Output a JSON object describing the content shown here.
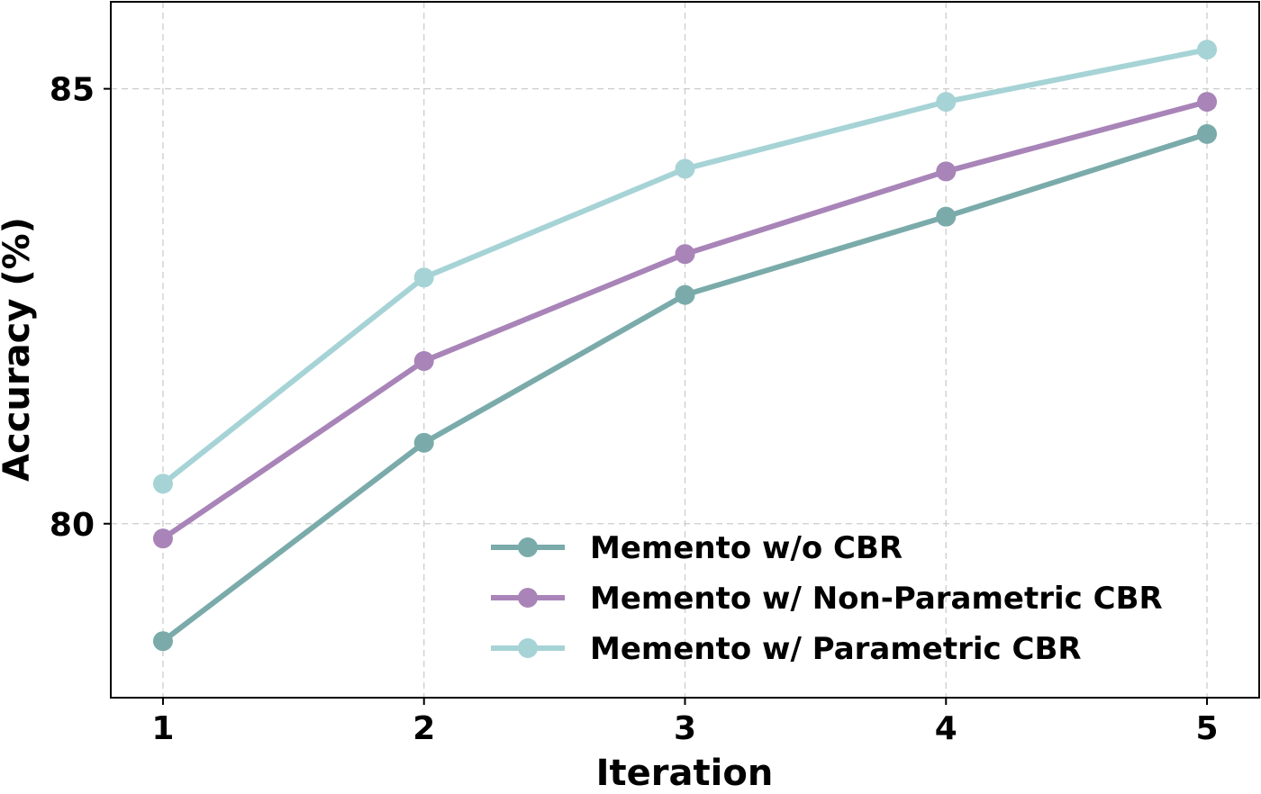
{
  "chart_data": {
    "type": "line",
    "xlabel": "Iteration",
    "ylabel": "Accuracy (%)",
    "x": [
      1,
      2,
      3,
      4,
      5
    ],
    "x_tick_labels": [
      "1",
      "2",
      "3",
      "4",
      "5"
    ],
    "y_ticks": [
      80,
      85
    ],
    "y_tick_labels": [
      "80",
      "85"
    ],
    "xlim": [
      0.8,
      5.2
    ],
    "ylim": [
      78,
      86
    ],
    "grid": true,
    "legend_position": "lower right",
    "series": [
      {
        "name": "Memento w/o CBR",
        "color": "#7aabaa",
        "values": [
          78.65,
          80.93,
          82.63,
          83.53,
          84.48
        ]
      },
      {
        "name": "Memento w/ Non-Parametric CBR",
        "color": "#a884b8",
        "values": [
          79.83,
          81.87,
          83.1,
          84.05,
          84.85
        ]
      },
      {
        "name": "Memento w/ Parametric CBR",
        "color": "#a6d3d6",
        "values": [
          80.46,
          82.83,
          84.08,
          84.85,
          85.45
        ]
      }
    ]
  }
}
